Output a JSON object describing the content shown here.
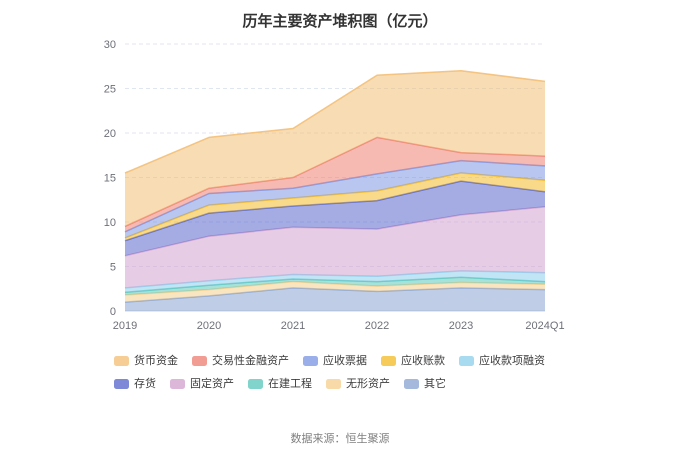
{
  "page": {
    "title": "历年主要资产堆积图（亿元）",
    "source": "数据来源：恒生聚源"
  },
  "chart_data": {
    "type": "area",
    "stacked": true,
    "title": "历年主要资产堆积图（亿元）",
    "unit": "亿元",
    "x": [
      "2019",
      "2020",
      "2021",
      "2022",
      "2023",
      "2024Q1"
    ],
    "ylim": [
      0,
      30
    ],
    "yticks": [
      0,
      5,
      10,
      15,
      20,
      25,
      30
    ],
    "grid": true,
    "grid_style": "dashed",
    "legend_position": "bottom",
    "series": [
      {
        "name": "货币资金",
        "color": "#f3bf77",
        "values": [
          6.0,
          5.7,
          5.5,
          7.0,
          9.2,
          8.4
        ]
      },
      {
        "name": "交易性金融资产",
        "color": "#ee8275",
        "values": [
          0.6,
          0.6,
          1.2,
          4.1,
          0.9,
          1.1
        ]
      },
      {
        "name": "应收票据",
        "color": "#7d97e3",
        "values": [
          0.7,
          1.3,
          1.1,
          1.9,
          1.4,
          1.6
        ]
      },
      {
        "name": "应收账款",
        "color": "#f4bc2a",
        "values": [
          0.3,
          0.9,
          0.9,
          1.1,
          0.9,
          1.3
        ]
      },
      {
        "name": "应收款项融资",
        "color": "#8fcfec",
        "values": [
          0.5,
          0.5,
          0.5,
          0.6,
          0.7,
          1.0
        ]
      },
      {
        "name": "存货",
        "color": "#5a68cc",
        "values": [
          1.7,
          2.6,
          2.4,
          3.2,
          3.8,
          1.7
        ]
      },
      {
        "name": "固定资产",
        "color": "#d3a3cf",
        "values": [
          3.6,
          5.0,
          5.3,
          5.3,
          6.3,
          7.4
        ]
      },
      {
        "name": "在建工程",
        "color": "#5cc8bc",
        "values": [
          0.3,
          0.5,
          0.3,
          0.5,
          0.6,
          0.3
        ]
      },
      {
        "name": "无形资产",
        "color": "#f5cf8e",
        "values": [
          0.8,
          0.7,
          0.7,
          0.6,
          0.6,
          0.6
        ]
      },
      {
        "name": "其它",
        "color": "#8ba5d1",
        "values": [
          1.0,
          1.7,
          2.6,
          2.2,
          2.6,
          2.4
        ]
      }
    ],
    "stack_order_bottom_to_top": [
      "其它",
      "无形资产",
      "在建工程",
      "应收款项融资",
      "固定资产",
      "存货",
      "应收账款",
      "应收票据",
      "交易性金融资产",
      "货币资金"
    ],
    "colors": {
      "axis_label": "#6e7079",
      "gridline": "#e0e6f0",
      "axis_line": "#ccd2de"
    }
  }
}
